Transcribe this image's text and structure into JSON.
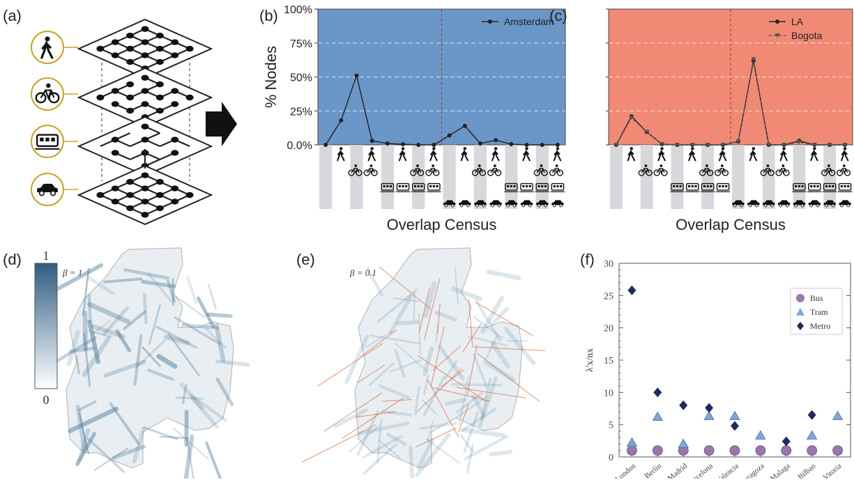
{
  "panels": {
    "a": {
      "label": "(a)",
      "layers": [
        {
          "name": "walk",
          "icon": "pedestrian-icon"
        },
        {
          "name": "bike",
          "icon": "bicycle-icon"
        },
        {
          "name": "rail",
          "icon": "train-icon"
        },
        {
          "name": "car",
          "icon": "car-icon"
        }
      ]
    },
    "b": {
      "label": "(b)"
    },
    "c": {
      "label": "(c)"
    },
    "d": {
      "label": "(d)",
      "beta": "β = 1",
      "colorbar_top": "1",
      "colorbar_bottom": "0"
    },
    "e": {
      "label": "(e)",
      "beta": "β = 0.1"
    },
    "f": {
      "label": "(f)"
    }
  },
  "chart_data": [
    {
      "id": "b",
      "type": "line",
      "background": "#6b96c8",
      "ylabel": "% Nodes",
      "xlabel": "Overlap Census",
      "ylim": [
        0,
        100
      ],
      "yticks": [
        "0.0%",
        "25%",
        "50%",
        "75%",
        "100%"
      ],
      "x": [
        0,
        1,
        2,
        3,
        4,
        5,
        6,
        7,
        8,
        9,
        10,
        11,
        12,
        13,
        14,
        15
      ],
      "series": [
        {
          "name": "Amsterdam",
          "marker": "circle",
          "values": [
            0,
            18,
            51,
            3,
            1,
            0.5,
            0,
            0,
            7,
            14,
            1,
            3.5,
            0.5,
            0,
            0,
            0
          ]
        }
      ],
      "legend": "top-right",
      "divider_x": 7.5
    },
    {
      "id": "c",
      "type": "line",
      "background": "#f08a75",
      "xlabel": "Overlap Census",
      "ylim": [
        0,
        100
      ],
      "x": [
        0,
        1,
        2,
        3,
        4,
        5,
        6,
        7,
        8,
        9,
        10,
        11,
        12,
        13,
        14,
        15
      ],
      "series": [
        {
          "name": "LA",
          "marker": "circle",
          "values": [
            0,
            21,
            9.5,
            0.5,
            0,
            0,
            0,
            0,
            2.5,
            62,
            0,
            0,
            3,
            0,
            0,
            0
          ]
        },
        {
          "name": "Bogota",
          "marker": "triangle-down",
          "dash": true,
          "values": [
            0,
            20,
            9.5,
            0.5,
            0,
            0,
            0,
            0,
            2.5,
            63,
            0,
            0,
            2,
            0,
            0,
            0
          ]
        }
      ],
      "legend": "top-right",
      "divider_x": 7.5
    },
    {
      "id": "f",
      "type": "scatter",
      "ylabel": "λ'x/nx",
      "ylim": [
        0,
        30
      ],
      "yticks": [
        0,
        5,
        10,
        15,
        20,
        25,
        30
      ],
      "categories": [
        "London",
        "Berlin",
        "Madrid",
        "Barcelona",
        "Valencia",
        "Zaragoza",
        "Malaga",
        "Bilbao",
        "Vitoria"
      ],
      "series": [
        {
          "name": "Bus",
          "marker": "circle",
          "color": "#9b76ad",
          "values": [
            1,
            1,
            1,
            1,
            1,
            1,
            1,
            1,
            1
          ]
        },
        {
          "name": "Tram",
          "marker": "triangle",
          "color": "#7fa7d6",
          "values": [
            2.2,
            6.2,
            2.0,
            6.3,
            6.3,
            3.3,
            null,
            3.3,
            6.3
          ]
        },
        {
          "name": "Metro",
          "marker": "diamond",
          "color": "#1f2a5c",
          "values": [
            25.8,
            10.0,
            8.0,
            7.6,
            4.8,
            null,
            2.4,
            6.5,
            null
          ]
        }
      ],
      "legend": "top-right"
    }
  ],
  "colors": {
    "grey_bar": "#d8d8dc",
    "line": "#2a2a2a",
    "map_blue": "#4a7899",
    "map_red": "#d4643a"
  }
}
